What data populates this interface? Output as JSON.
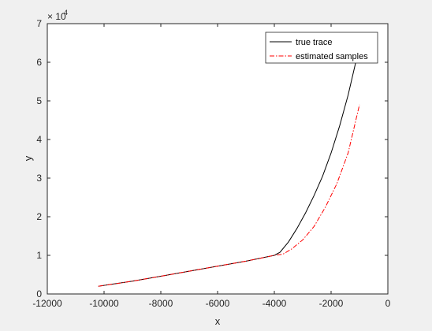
{
  "chart_data": {
    "type": "line",
    "xlabel": "x",
    "ylabel": "y",
    "xlim": [
      -12000,
      0
    ],
    "ylim": [
      0,
      70000
    ],
    "x_ticks": [
      -12000,
      -10000,
      -8000,
      -6000,
      -4000,
      -2000,
      0
    ],
    "x_tick_labels": [
      "-12000",
      "-10000",
      "-8000",
      "-6000",
      "-4000",
      "-2000",
      "0"
    ],
    "y_ticks": [
      0,
      10000,
      20000,
      30000,
      40000,
      50000,
      60000,
      70000
    ],
    "y_tick_labels": [
      "0",
      "1",
      "2",
      "3",
      "4",
      "5",
      "6",
      "7"
    ],
    "y_exponent_base": "× 10",
    "y_exponent_power": "4",
    "grid": false,
    "legend_position": "top-right",
    "series": [
      {
        "name": "true trace",
        "color": "#000000",
        "style": "solid",
        "x": [
          -10200,
          -9000,
          -8000,
          -7000,
          -6000,
          -5000,
          -4000,
          -3800,
          -3500,
          -3200,
          -2900,
          -2600,
          -2300,
          -2000,
          -1700,
          -1400,
          -1100
        ],
        "y": [
          2000,
          3300,
          4600,
          5900,
          7200,
          8500,
          10000,
          10800,
          13500,
          17000,
          21000,
          25500,
          30500,
          36500,
          43500,
          51500,
          61000
        ]
      },
      {
        "name": "estimated samples",
        "color": "#ff0000",
        "style": "dashdot",
        "x": [
          -10200,
          -9000,
          -8000,
          -7000,
          -6000,
          -5000,
          -4000,
          -3700,
          -3400,
          -3000,
          -2600,
          -2200,
          -1800,
          -1400,
          -1000
        ],
        "y": [
          2000,
          3300,
          4600,
          5900,
          7200,
          8500,
          10000,
          10300,
          11600,
          14000,
          17500,
          22500,
          28500,
          36500,
          49000
        ]
      }
    ]
  }
}
